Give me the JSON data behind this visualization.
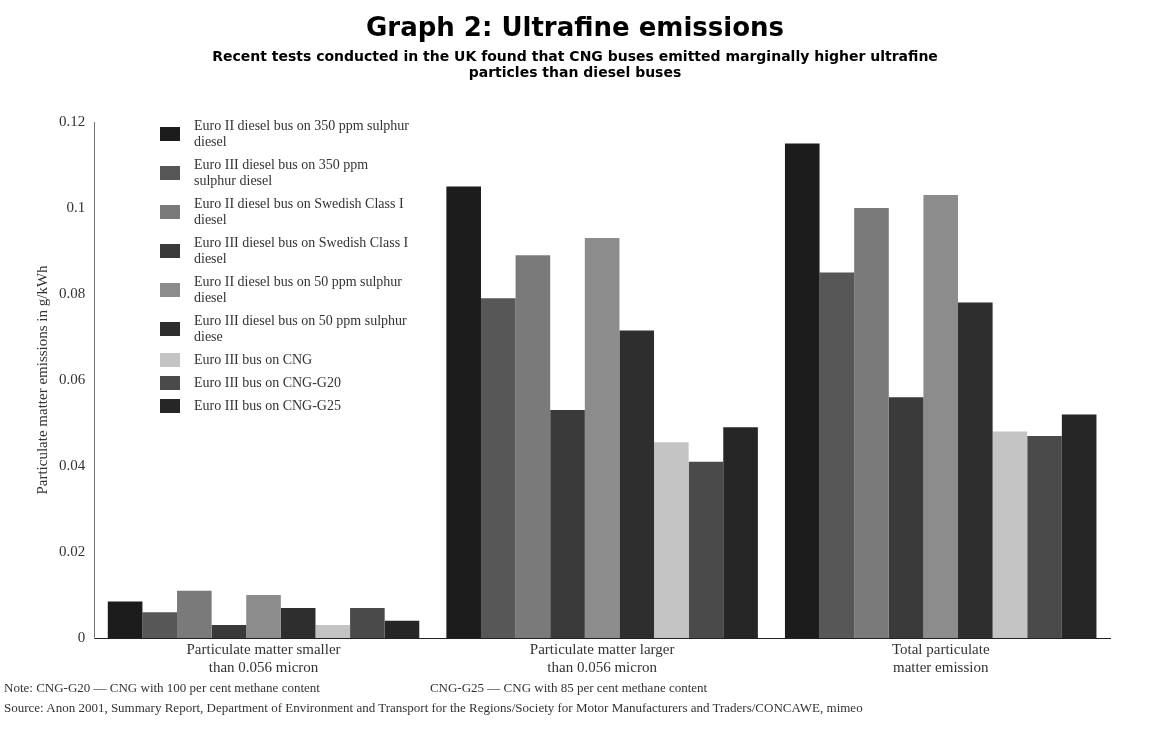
{
  "chart_data": {
    "type": "bar",
    "title": "Graph 2: Ultrafine emissions",
    "subtitle": "Recent tests conducted in the UK found that CNG buses emitted marginally higher ultrafine particles than diesel buses",
    "ylabel": "Particulate matter emissions in g/kWh",
    "categories": [
      "Particulate matter smaller than 0.056 micron",
      "Particulate matter larger than 0.056 micron",
      "Total particulate matter emission"
    ],
    "series": [
      {
        "name": "Euro II diesel bus on 350 ppm sulphur diesel",
        "color": "#1c1c1c",
        "values": [
          0.0085,
          0.105,
          0.115
        ]
      },
      {
        "name": "Euro III diesel bus on 350 ppm sulphur diesel",
        "color": "#575757",
        "values": [
          0.006,
          0.079,
          0.085
        ]
      },
      {
        "name": "Euro II diesel bus on Swedish Class I diesel",
        "color": "#7a7a7a",
        "values": [
          0.011,
          0.089,
          0.1
        ]
      },
      {
        "name": "Euro III diesel bus on Swedish Class I diesel",
        "color": "#3a3a3a",
        "values": [
          0.003,
          0.053,
          0.056
        ]
      },
      {
        "name": "Euro II diesel bus on 50 ppm sulphur diesel",
        "color": "#8c8c8c",
        "values": [
          0.01,
          0.093,
          0.103
        ]
      },
      {
        "name": "Euro III diesel bus on 50 ppm sulphur diese",
        "color": "#2e2e2e",
        "values": [
          0.007,
          0.0715,
          0.078
        ]
      },
      {
        "name": "Euro III bus on CNG",
        "color": "#c4c4c4",
        "values": [
          0.003,
          0.0455,
          0.048
        ]
      },
      {
        "name": "Euro III bus on CNG-G20",
        "color": "#4a4a4a",
        "values": [
          0.007,
          0.041,
          0.047
        ]
      },
      {
        "name": "Euro III bus on CNG-G25",
        "color": "#262626",
        "values": [
          0.004,
          0.049,
          0.052
        ]
      }
    ],
    "ylim": [
      0,
      0.12
    ],
    "yticks": [
      0,
      0.02,
      0.04,
      0.06,
      0.08,
      0.1,
      0.12
    ],
    "grid": false,
    "legend": "top left",
    "annotations": [
      "Note: CNG-G20 — CNG with 100 per cent methane content",
      "CNG-G25 — CNG with 85 per cent methane content",
      "Source: Anon 2001, Summary Report, Department of Environment and Transport for the Regions/Society for Motor Manufacturers and Traders/CONCAWE, mimeo"
    ]
  }
}
